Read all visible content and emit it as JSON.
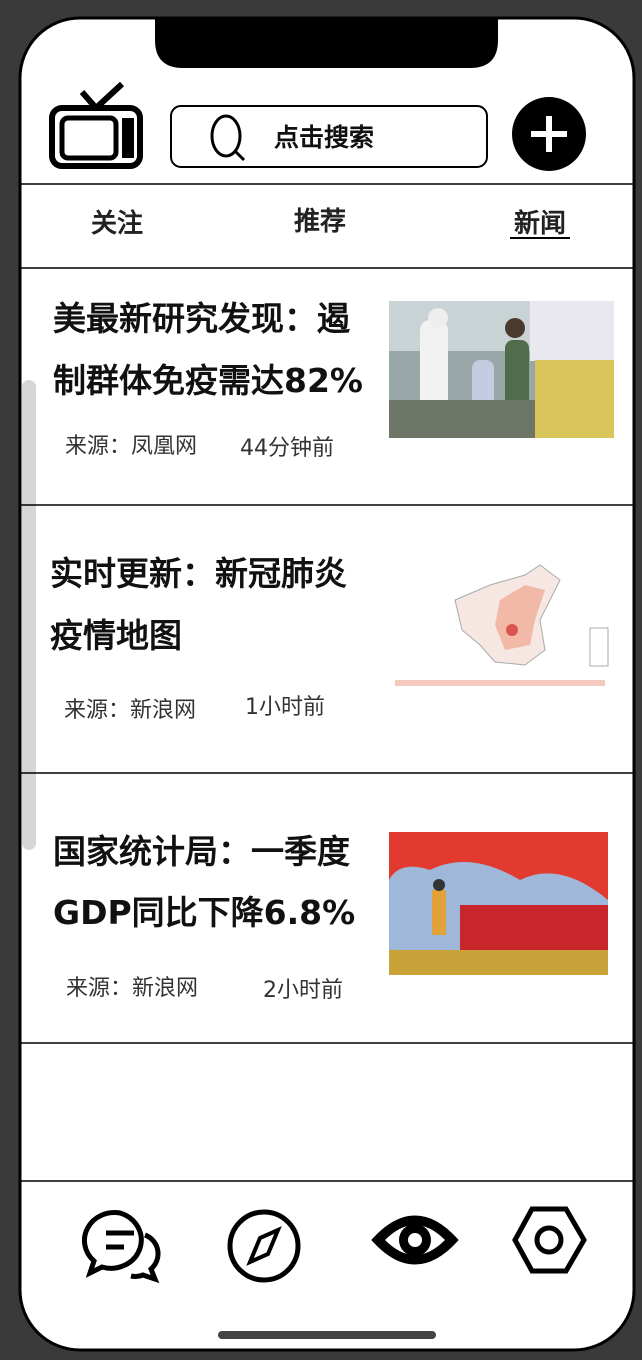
{
  "header": {
    "search_placeholder": "点击搜索"
  },
  "tabs": [
    "关注",
    "推荐",
    "新闻"
  ],
  "news": [
    {
      "title_lines": [
        "美最新研究发现：遏",
        "制群体免疫需达82%"
      ],
      "source": "来源：凤凰网",
      "time": "44分钟前"
    },
    {
      "title_lines": [
        "实时更新：新冠肺炎",
        "疫情地图"
      ],
      "source": "来源：新浪网",
      "time": "1小时前"
    },
    {
      "title_lines": [
        "国家统计局：一季度",
        "GDP同比下降6.8%"
      ],
      "source": "来源：新浪网",
      "time": "2小时前"
    }
  ]
}
